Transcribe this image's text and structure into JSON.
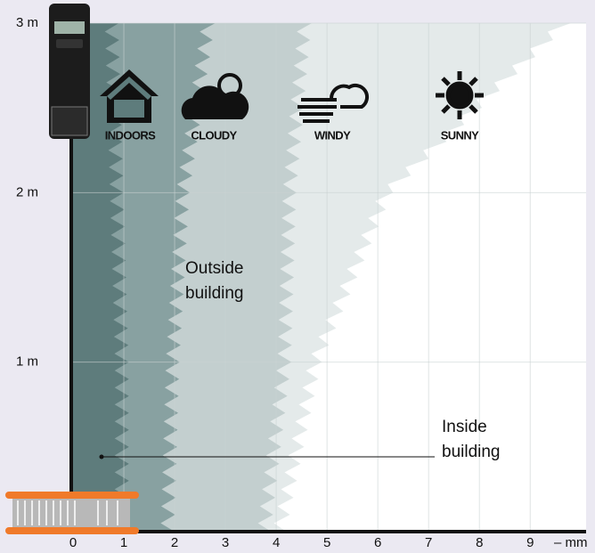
{
  "chart_data": {
    "type": "area",
    "xlim": [
      0,
      10.1
    ],
    "ylim": [
      0,
      3
    ],
    "xticks": [
      0,
      1,
      2,
      3,
      4,
      5,
      6,
      7,
      8,
      9
    ],
    "yticks": [
      {
        "value": 1,
        "label": "1 m"
      },
      {
        "value": 2,
        "label": "2 m"
      },
      {
        "value": 3,
        "label": "3 m"
      }
    ],
    "x_label": "– mm",
    "y": [
      0,
      1,
      2,
      3
    ],
    "series": [
      {
        "name": "SUNNY",
        "color": "#e4eaea",
        "values": [
          4.2,
          4.9,
          6.3,
          9.8
        ]
      },
      {
        "name": "WINDY",
        "color": "#c3cfcf",
        "values": [
          3.9,
          4.3,
          4.4,
          4.7
        ]
      },
      {
        "name": "CLOUDY",
        "color": "#88a1a1",
        "values": [
          2.0,
          2.1,
          2.3,
          2.8
        ]
      },
      {
        "name": "INDOORS",
        "color": "#5e7c7c",
        "values": [
          1.1,
          1.1,
          1.0,
          0.9
        ]
      }
    ],
    "annotations": [
      "Outside building",
      "Inside building"
    ],
    "grid": true
  }
}
